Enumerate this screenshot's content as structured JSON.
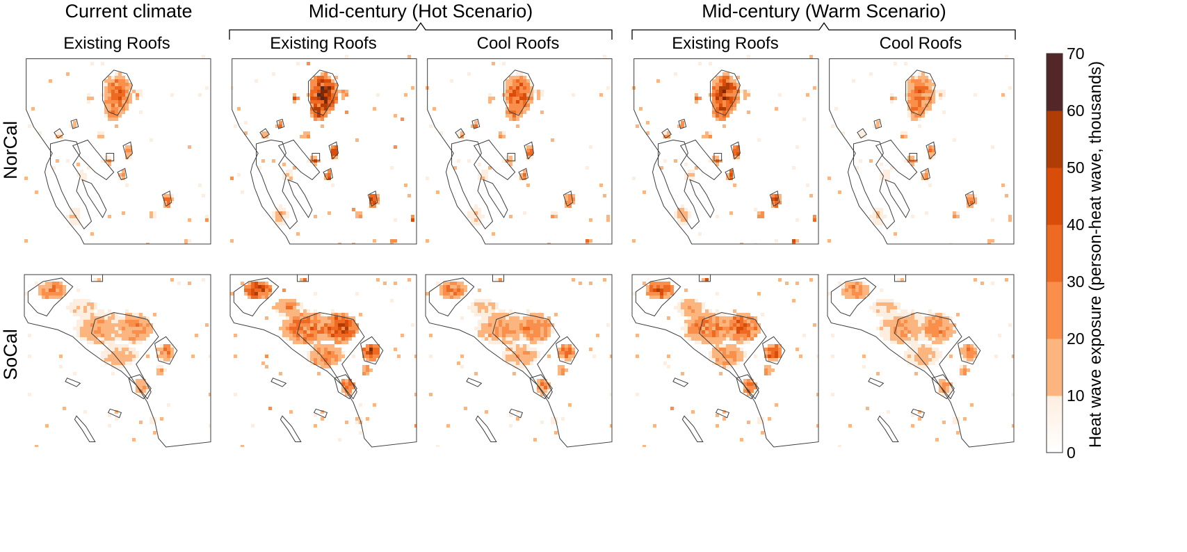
{
  "scenarios": [
    {
      "label": "Current climate"
    },
    {
      "label": "Mid-century (Hot Scenario)"
    },
    {
      "label": "Mid-century (Warm Scenario)"
    }
  ],
  "columns": [
    {
      "label": "Existing Roofs",
      "scenario": 0,
      "intensity": 0.55
    },
    {
      "label": "Existing Roofs",
      "scenario": 1,
      "intensity": 1.0
    },
    {
      "label": "Cool Roofs",
      "scenario": 1,
      "intensity": 0.65
    },
    {
      "label": "Existing Roofs",
      "scenario": 2,
      "intensity": 0.85
    },
    {
      "label": "Cool Roofs",
      "scenario": 2,
      "intensity": 0.55
    }
  ],
  "rows": [
    {
      "label": "NorCal"
    },
    {
      "label": "SoCal"
    }
  ],
  "colorbar": {
    "label": "Heat wave exposure (person-heat wave, thousands)",
    "ticks": [
      "0",
      "10",
      "20",
      "30",
      "40",
      "50",
      "60",
      "70"
    ],
    "min": 0,
    "max": 70,
    "colors": [
      "#fdeedf",
      "#fcb57f",
      "#f98f4a",
      "#ee6a22",
      "#d94c0a",
      "#b03c06",
      "#7c2a02",
      "#532727"
    ]
  },
  "colors": {
    "outline": "#3c3c3c",
    "frame": "#555555"
  }
}
